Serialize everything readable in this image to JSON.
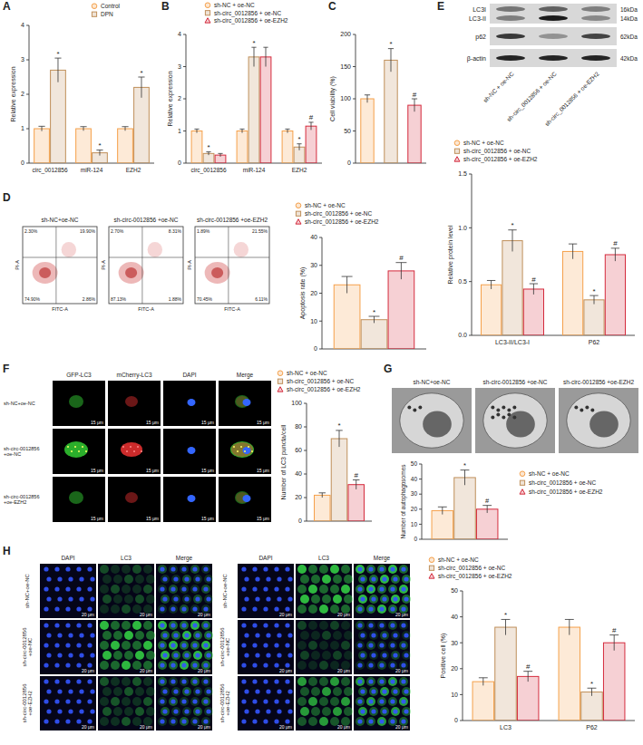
{
  "chart_data": [
    {
      "panel": "A",
      "type": "bar",
      "categories": [
        "circ_0012856",
        "miR-124",
        "EZH2"
      ],
      "series": [
        {
          "name": "Control",
          "color": "#f5a04a",
          "marker": "circle",
          "values": [
            1.0,
            1.0,
            1.0
          ],
          "errors": [
            0.07,
            0.06,
            0.06
          ],
          "significance": [
            null,
            null,
            null
          ]
        },
        {
          "name": "DPN",
          "color": "#bf8f5a",
          "marker": "square",
          "values": [
            2.7,
            0.3,
            2.2
          ],
          "errors": [
            0.35,
            0.08,
            0.3
          ],
          "significance": [
            "*",
            "*",
            "*"
          ]
        }
      ],
      "y_label": "Relative expression",
      "ylim": [
        0,
        4
      ],
      "yticks": [
        0,
        1,
        2,
        3,
        4
      ],
      "legend": "top"
    },
    {
      "panel": "B",
      "type": "bar",
      "categories": [
        "circ_0012856",
        "miR-124",
        "EZH2"
      ],
      "series": [
        {
          "name": "sh-NC + oe-NC",
          "color": "#f5a04a",
          "marker": "circle",
          "values": [
            1.0,
            1.0,
            1.0
          ],
          "errors": [
            0.06,
            0.06,
            0.06
          ],
          "significance": [
            null,
            null,
            null
          ]
        },
        {
          "name": "sh-circ_0012856 + oe-NC",
          "color": "#bf8f5a",
          "marker": "square",
          "values": [
            0.3,
            3.3,
            0.5
          ],
          "errors": [
            0.05,
            0.3,
            0.1
          ],
          "significance": [
            "*",
            "*",
            "*"
          ]
        },
        {
          "name": "sh-circ_0012856 + oe-EZH2",
          "color": "#d42a3c",
          "marker": "triangle",
          "values": [
            0.25,
            3.3,
            1.15
          ],
          "errors": [
            0.05,
            0.3,
            0.12
          ],
          "significance": [
            null,
            null,
            "#"
          ]
        }
      ],
      "y_label": "Relative expression",
      "ylim": [
        0,
        4
      ],
      "yticks": [
        0,
        1,
        2,
        3,
        4
      ],
      "legend": "top"
    },
    {
      "panel": "C",
      "type": "bar",
      "categories": [
        null,
        null,
        null
      ],
      "values": [
        100,
        160,
        90
      ],
      "errors": [
        6,
        18,
        10
      ],
      "significance": [
        null,
        "*",
        "#"
      ],
      "colors": [
        "#f5a04a",
        "#bf8f5a",
        "#d42a3c"
      ],
      "y_label": "Cell viability (%)",
      "ylim": [
        0,
        200
      ],
      "yticks": [
        0,
        50,
        100,
        150,
        200
      ]
    },
    {
      "panel": "D",
      "type": "bar",
      "categories": [
        null
      ],
      "series": [
        {
          "name": "sh-NC + oe-NC",
          "color": "#f5a04a",
          "marker": "circle",
          "values": [
            23
          ],
          "errors": [
            3
          ],
          "significance": [
            null
          ]
        },
        {
          "name": "sh-circ_0012856 + oe-NC",
          "color": "#bf8f5a",
          "marker": "square",
          "values": [
            10.5
          ],
          "errors": [
            1.2
          ],
          "significance": [
            "*"
          ]
        },
        {
          "name": "sh-circ_0012856 + oe-EZH2",
          "color": "#d42a3c",
          "marker": "triangle",
          "values": [
            28
          ],
          "errors": [
            3
          ],
          "significance": [
            "#"
          ]
        }
      ],
      "y_label": "Apoptosis rate (%)",
      "ylim": [
        0,
        40
      ],
      "yticks": [
        0,
        10,
        20,
        30,
        40
      ],
      "legend": "top"
    },
    {
      "panel": "E",
      "type": "bar",
      "categories": [
        "LC3-II/LC3-I",
        "P62"
      ],
      "series": [
        {
          "name": "sh-NC + oe-NC",
          "color": "#f5a04a",
          "marker": "circle",
          "values": [
            0.47,
            0.78
          ],
          "errors": [
            0.04,
            0.07
          ],
          "significance": [
            null,
            null
          ]
        },
        {
          "name": "sh-circ_0012856 + oe-NC",
          "color": "#bf8f5a",
          "marker": "square",
          "values": [
            0.88,
            0.33
          ],
          "errors": [
            0.1,
            0.04
          ],
          "significance": [
            "*",
            "*"
          ]
        },
        {
          "name": "sh-circ_0012856 + oe-EZH2",
          "color": "#d42a3c",
          "marker": "triangle",
          "values": [
            0.43,
            0.75
          ],
          "errors": [
            0.05,
            0.06
          ],
          "significance": [
            "#",
            "#"
          ]
        }
      ],
      "y_label": "Relative protein level",
      "ylim": [
        0,
        1.5
      ],
      "yticks": [
        {
          "value": 0,
          "label": "0.0"
        },
        0.5,
        {
          "value": 1,
          "label": "1.0"
        },
        1.5
      ],
      "legend": "top"
    },
    {
      "panel": "F",
      "type": "bar",
      "categories": [
        null
      ],
      "series": [
        {
          "name": "sh-NC + oe-NC",
          "color": "#f5a04a",
          "marker": "circle",
          "values": [
            22
          ],
          "errors": [
            2
          ],
          "significance": [
            null
          ]
        },
        {
          "name": "sh-circ_0012856 + oe-NC",
          "color": "#bf8f5a",
          "marker": "square",
          "values": [
            70
          ],
          "errors": [
            7
          ],
          "significance": [
            "*"
          ]
        },
        {
          "name": "sh-circ_0012856 + oe-EZH2",
          "color": "#d42a3c",
          "marker": "triangle",
          "values": [
            31
          ],
          "errors": [
            4
          ],
          "significance": [
            "#"
          ]
        }
      ],
      "y_label": "Number of LC3 puncta/cell",
      "ylim": [
        0,
        100
      ],
      "yticks": [
        0,
        20,
        40,
        60,
        80,
        100
      ],
      "legend": "top"
    },
    {
      "panel": "G",
      "type": "bar",
      "categories": [
        null
      ],
      "series": [
        {
          "name": "sh-NC + oe-NC",
          "color": "#f5a04a",
          "marker": "circle",
          "values": [
            19
          ],
          "errors": [
            2.5
          ],
          "significance": [
            null
          ]
        },
        {
          "name": "sh-circ_0012856 + oe-NC",
          "color": "#bf8f5a",
          "marker": "square",
          "values": [
            41
          ],
          "errors": [
            5
          ],
          "significance": [
            "*"
          ]
        },
        {
          "name": "sh-circ_0012856 + oe-EZH2",
          "color": "#d42a3c",
          "marker": "triangle",
          "values": [
            20
          ],
          "errors": [
            2.5
          ],
          "significance": [
            "#"
          ]
        }
      ],
      "y_label": "Number of autophagosomes",
      "ylim": [
        0,
        50
      ],
      "yticks": [
        0,
        10,
        20,
        30,
        40,
        50
      ],
      "legend": "right"
    },
    {
      "panel": "H",
      "type": "bar",
      "categories": [
        "LC3",
        "P62"
      ],
      "series": [
        {
          "name": "sh-NC + oe-NC",
          "color": "#f5a04a",
          "marker": "circle",
          "values": [
            15,
            36
          ],
          "errors": [
            1.5,
            3
          ],
          "significance": [
            null,
            null
          ]
        },
        {
          "name": "sh-circ_0012856 + oe-NC",
          "color": "#bf8f5a",
          "marker": "square",
          "values": [
            36,
            11
          ],
          "errors": [
            3,
            1.5
          ],
          "significance": [
            "*",
            "*"
          ]
        },
        {
          "name": "sh-circ_0012856 + oe-EZH2",
          "color": "#d42a3c",
          "marker": "triangle",
          "values": [
            17,
            30
          ],
          "errors": [
            2,
            3
          ],
          "significance": [
            "#",
            "#"
          ]
        }
      ],
      "y_label": "Positive cell (%)",
      "ylim": [
        0,
        50
      ],
      "yticks": [
        0,
        10,
        20,
        30,
        40,
        50
      ],
      "legend": "top"
    }
  ],
  "flow_cytometry": {
    "x_label": "FITC-A",
    "y_label": "PI-A",
    "plots": [
      {
        "title": "sh-NC+oe-NC",
        "quadrants": [
          "2.30%",
          "19.90%",
          "74.90%",
          "2.86%"
        ]
      },
      {
        "title": "sh-circ-0012856 +oe-NC",
        "quadrants": [
          "2.70%",
          "8.31%",
          "87.13%",
          "1.88%"
        ]
      },
      {
        "title": "sh-circ-0012856 +oe-EZH2",
        "quadrants": [
          "1.89%",
          "21.55%",
          "70.45%",
          "6.11%"
        ]
      }
    ]
  },
  "western_blot": {
    "rows": [
      {
        "labels": [
          "LC3I",
          "LC3-II"
        ],
        "sizes": [
          "16kDa",
          "14kDa"
        ]
      },
      {
        "labels": [
          "p62"
        ],
        "sizes": [
          "62kDa"
        ]
      },
      {
        "labels": [
          "β-actin"
        ],
        "sizes": [
          "42kDa"
        ]
      }
    ],
    "lanes": [
      "sh-NC + oe-NC",
      "sh-circ_0012856 + oe-NC",
      "sh-circ_0012856 + oe-EZH2"
    ]
  },
  "fluorescence": {
    "columns": [
      "GFP-LC3",
      "mCherry-LC3",
      "DAPI",
      "Merge"
    ],
    "rows": [
      "sh-NC+oe-NC",
      "sh-circ-0012856 +oe-NC",
      "sh-circ-0012856 +oe-EZH2"
    ],
    "scale": "15 μm"
  },
  "tem": {
    "titles": [
      "sh-NC+oe-NC",
      "sh-circ-0012856 +oe-NC",
      "sh-circ-0012856 +oe-EZH2"
    ]
  },
  "immunofluorescence": {
    "columns": [
      "DAPI",
      "LC3",
      "Merge",
      "DAPI",
      "LC3",
      "Merge"
    ],
    "rows": [
      "sh-NC+oe-NC",
      "sh-circ-0012856 +oe-NC",
      "sh-circ-0012856 +oe-EZH2"
    ],
    "scale": "20 μm"
  }
}
